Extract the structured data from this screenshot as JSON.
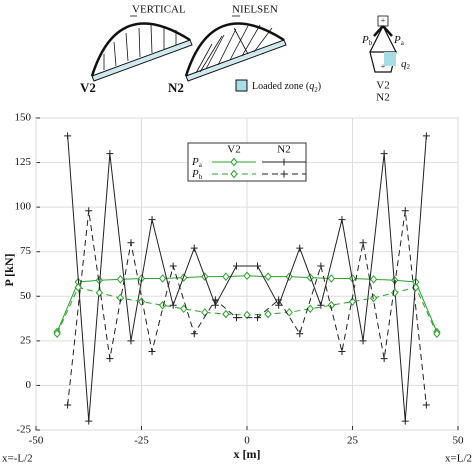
{
  "illustration": {
    "vertical": "VERTICAL",
    "nielsen": "NIELSEN",
    "v2": "V2",
    "n2": "N2",
    "loaded_zone": {
      "prefix": "Loaded zone (",
      "main": "q",
      "sub": "2",
      "suffix": ")"
    },
    "pb": {
      "main": "P",
      "sub": "b"
    },
    "pa": {
      "main": "P",
      "sub": "a"
    },
    "q2": {
      "main": "q",
      "sub": "2"
    },
    "plus": "+",
    "minus": "+",
    "fig_v2": "V2",
    "fig_n2": "N2"
  },
  "chart_data": {
    "type": "line",
    "ylabel": "P [kN]",
    "xlabel": "x [m]",
    "left_note": "x=-L/2",
    "right_note": "x=L/2",
    "xlim": [
      -50,
      50
    ],
    "xticks": [
      -50,
      -25,
      0,
      25,
      50
    ],
    "ylim": [
      -25,
      150
    ],
    "yticks": [
      -25,
      0,
      25,
      50,
      75,
      100,
      125,
      150
    ],
    "legend": {
      "columns": [
        "V2",
        "N2"
      ],
      "rows": [
        {
          "main": "P",
          "sub": "a"
        },
        {
          "main": "P",
          "sub": "b"
        }
      ]
    },
    "series": [
      {
        "color": "#2ca02c",
        "marker": "diamond",
        "dash": "solid",
        "x": [
          -45,
          -40,
          -35,
          -30,
          -25,
          -20,
          -15,
          -10,
          -5,
          0,
          5,
          10,
          15,
          20,
          25,
          30,
          35,
          40,
          45
        ],
        "values": [
          30,
          58,
          59,
          59.5,
          60,
          60,
          60.5,
          61,
          61,
          61.5,
          61,
          61,
          60.5,
          60,
          60,
          59.5,
          59,
          58,
          30
        ]
      },
      {
        "color": "#222222",
        "marker": "plus",
        "dash": "solid",
        "x": [
          -42.5,
          -37.5,
          -32.5,
          -27.5,
          -22.5,
          -17.5,
          -12.5,
          -7.5,
          -2.5,
          2.5,
          7.5,
          12.5,
          17.5,
          22.5,
          27.5,
          32.5,
          37.5,
          42.5
        ],
        "values": [
          140,
          -20,
          130,
          25,
          93,
          45,
          77,
          45,
          67,
          67,
          45,
          77,
          45,
          93,
          25,
          130,
          -20,
          140
        ]
      },
      {
        "color": "#2ca02c",
        "marker": "diamond",
        "dash": "dashed",
        "x": [
          -45,
          -40,
          -35,
          -30,
          -25,
          -20,
          -15,
          -10,
          -5,
          0,
          5,
          10,
          15,
          20,
          25,
          30,
          35,
          40,
          45
        ],
        "values": [
          29,
          55,
          52,
          49,
          47,
          45,
          43,
          41,
          40,
          39.5,
          40,
          41,
          43,
          45,
          47,
          49,
          52,
          55,
          29
        ]
      },
      {
        "color": "#222222",
        "marker": "plus",
        "dash": "dashed",
        "x": [
          -42.5,
          -37.5,
          -32.5,
          -27.5,
          -22.5,
          -17.5,
          -12.5,
          -7.5,
          -2.5,
          2.5,
          7.5,
          12.5,
          17.5,
          22.5,
          27.5,
          32.5,
          37.5,
          42.5
        ],
        "values": [
          -11,
          98,
          15,
          80,
          19,
          67,
          29,
          48,
          38,
          38,
          48,
          29,
          67,
          19,
          80,
          15,
          98,
          -11
        ]
      }
    ]
  }
}
